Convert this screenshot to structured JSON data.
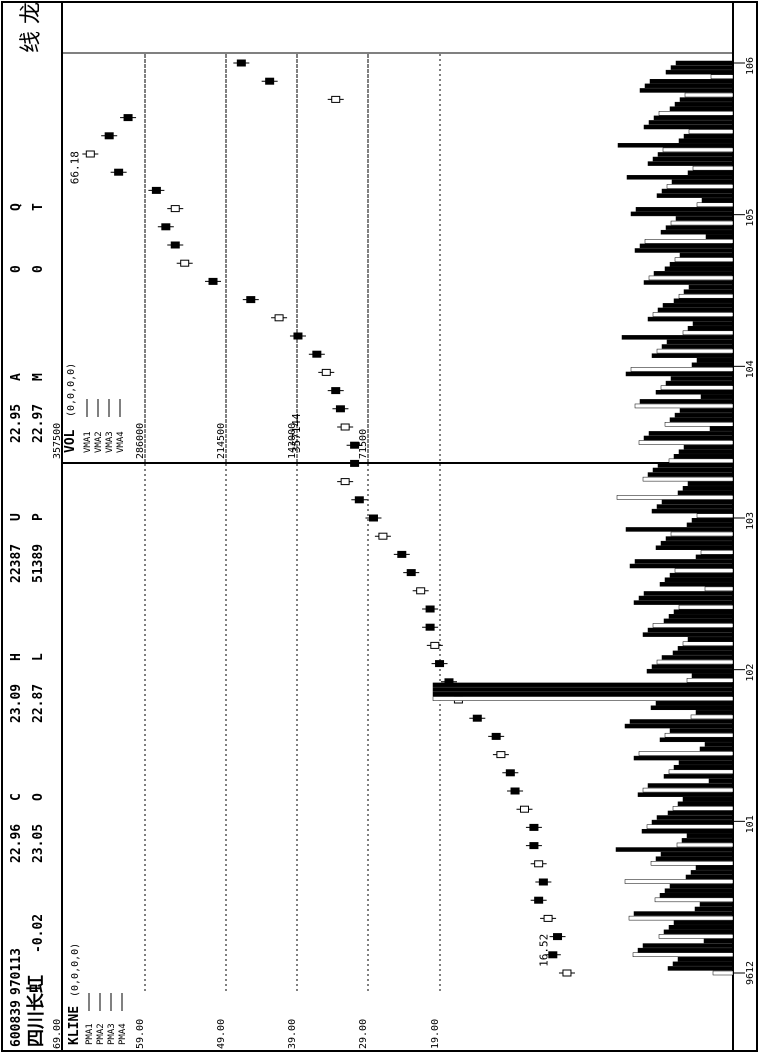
{
  "header": {
    "code": "600839",
    "date": "970113",
    "name": "四川长虹",
    "change": "-0.02",
    "fields": [
      {
        "k": "C",
        "v": "22.96"
      },
      {
        "k": "H",
        "v": "23.09"
      },
      {
        "k": "U",
        "v": "22387"
      },
      {
        "k": "A",
        "v": "22.95"
      },
      {
        "k": "Q",
        "v": "0"
      },
      {
        "k": "O",
        "v": "23.05"
      },
      {
        "k": "L",
        "v": "22.87"
      },
      {
        "k": "P",
        "v": "51389"
      },
      {
        "k": "M",
        "v": "22.97"
      },
      {
        "k": "T",
        "v": "0"
      }
    ],
    "corner": "线 龙"
  },
  "kline_panel": {
    "label": "KLINE",
    "params": "(0,0,0,0)",
    "ma_labels": [
      "PMA1",
      "PMA2",
      "PMA3",
      "PMA4"
    ],
    "y_ticks": [
      "69.00",
      "59.00",
      "49.00",
      "39.00",
      "29.00",
      "19.00"
    ],
    "annotations": [
      {
        "text": "66.18"
      },
      {
        "text": "16.52"
      }
    ]
  },
  "vol_panel": {
    "label": "VOL",
    "params": "(0,0,0,0)",
    "ma_labels": [
      "VMA1",
      "VMA2",
      "VMA3",
      "VMA4"
    ],
    "y_ticks": [
      "357500",
      "286000",
      "214500",
      "143000",
      "71500"
    ],
    "annotation": "357144"
  },
  "x_axis": {
    "labels": [
      "9612",
      "101",
      "102",
      "103",
      "104",
      "105",
      "106"
    ]
  },
  "chart_data": {
    "type": "candlestick",
    "price": {
      "ylim": [
        12,
        69
      ],
      "x": [
        0,
        0.02,
        0.04,
        0.06,
        0.08,
        0.1,
        0.12,
        0.14,
        0.16,
        0.18,
        0.2,
        0.22,
        0.24,
        0.26,
        0.28,
        0.3,
        0.32,
        0.34,
        0.36,
        0.38,
        0.4,
        0.42,
        0.44,
        0.46,
        0.48,
        0.5,
        0.52,
        0.54,
        0.56,
        0.58,
        0.6,
        0.62,
        0.64,
        0.66,
        0.68,
        0.7,
        0.72,
        0.74,
        0.76,
        0.78,
        0.8,
        0.82,
        0.84,
        0.86,
        0.88,
        0.9,
        0.92,
        0.94,
        0.96,
        0.98,
        1.0
      ],
      "close": [
        15.5,
        17,
        16.5,
        17.5,
        18.5,
        18.0,
        18.5,
        19,
        19,
        20,
        21,
        21.5,
        22.5,
        23,
        25,
        27,
        28,
        29,
        29.5,
        30,
        30,
        31,
        32,
        33,
        35,
        36,
        37.5,
        39,
        38,
        38,
        39,
        39.5,
        40,
        41,
        42,
        44,
        46,
        49,
        53,
        56,
        57,
        58,
        57,
        59,
        63,
        66,
        64,
        62,
        40,
        47,
        50
      ],
      "annotations": [
        {
          "text": "66.18",
          "x": 0.88,
          "y": 66.18
        },
        {
          "text": "16.52",
          "x": 0.02,
          "y": 16.52
        }
      ]
    },
    "volume": {
      "ylim": [
        0,
        357500
      ],
      "spike": {
        "x": 0.31,
        "y": 357144
      }
    }
  }
}
